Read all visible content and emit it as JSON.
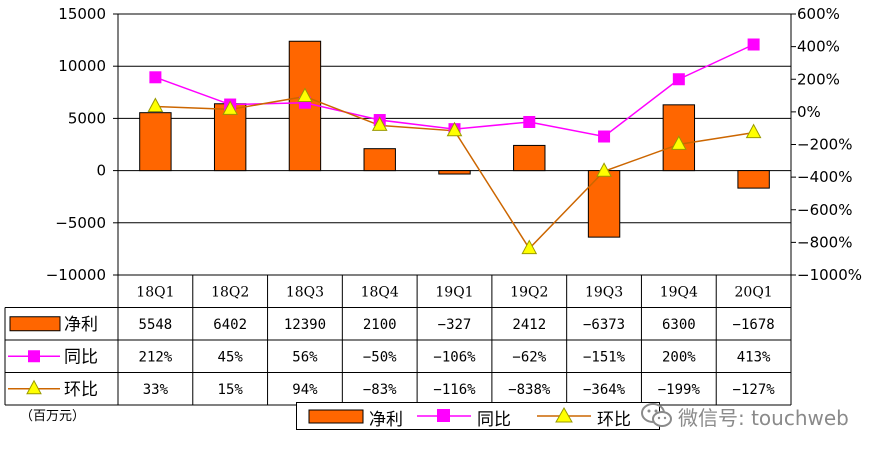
{
  "chart_data": {
    "type": "bar+line",
    "categories": [
      "18Q1",
      "18Q2",
      "18Q3",
      "18Q4",
      "19Q1",
      "19Q2",
      "19Q3",
      "19Q4",
      "20Q1"
    ],
    "series": [
      {
        "name": "净利",
        "kind": "bar",
        "axis": "left",
        "color": "#FF6600",
        "values": [
          5548,
          6402,
          12390,
          2100,
          -327,
          2412,
          -6373,
          6300,
          -1678
        ],
        "table_labels": [
          "5548",
          "6402",
          "12390",
          "2100",
          "−327",
          "2412",
          "−6373",
          "6300",
          "−1678"
        ]
      },
      {
        "name": "同比",
        "kind": "line",
        "axis": "right",
        "color": "#FF00FF",
        "marker": "square",
        "values": [
          212,
          45,
          56,
          -50,
          -106,
          -62,
          -151,
          200,
          413
        ],
        "table_labels": [
          "212%",
          "45%",
          "56%",
          "−50%",
          "−106%",
          "−62%",
          "−151%",
          "200%",
          "413%"
        ]
      },
      {
        "name": "环比",
        "kind": "line",
        "axis": "right",
        "color": "#CC6600",
        "marker": "triangle",
        "marker_color": "#FFFF00",
        "values": [
          33,
          15,
          94,
          -83,
          -116,
          -838,
          -364,
          -199,
          -127
        ],
        "table_labels": [
          "33%",
          "15%",
          "94%",
          "−83%",
          "−116%",
          "−838%",
          "−364%",
          "−199%",
          "−127%"
        ]
      }
    ],
    "y_left": {
      "ylim": [
        -10000,
        15000
      ],
      "ticks": [
        -10000,
        -5000,
        0,
        5000,
        10000,
        15000
      ],
      "tick_labels": [
        "−10000",
        "−5000",
        "0",
        "5000",
        "10000",
        "15000"
      ]
    },
    "y_right": {
      "ylim": [
        -1000,
        600
      ],
      "ticks": [
        -1000,
        -800,
        -600,
        -400,
        -200,
        0,
        200,
        400,
        600
      ],
      "tick_labels": [
        "−1000%",
        "−800%",
        "−600%",
        "−400%",
        "−200%",
        "0%",
        "200%",
        "400%",
        "600%"
      ]
    },
    "grid": "horizontal",
    "legend_position": "bottom"
  },
  "unit_note": "（百万元）",
  "legend": {
    "items": [
      "净利",
      "同比",
      "环比"
    ]
  },
  "watermark": {
    "text": "微信号: touchweb",
    "icon": "wechat-icon"
  }
}
